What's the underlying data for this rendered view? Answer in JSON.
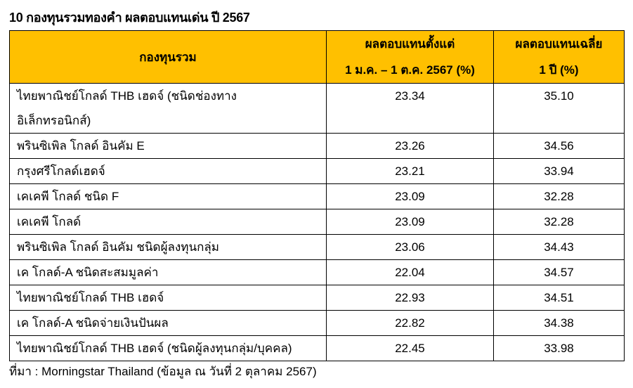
{
  "title": "10 กองทุนรวมทองคำ ผลตอบแทนเด่น ปี 2567",
  "headers": {
    "fund": "กองทุนรวม",
    "ytd_line1": "ผลตอบแทนตั้งแต่",
    "ytd_line2": "1 ม.ค. – 1 ต.ค. 2567 (%)",
    "avg_line1": "ผลตอบแทนเฉลี่ย",
    "avg_line2": "1 ปี (%)"
  },
  "rows": [
    {
      "fund": "ไทยพาณิชย์โกลด์ THB เฮดจ์ (ชนิดช่องทาง",
      "fund2": "อิเล็กทรอนิกส์)",
      "ytd": "23.34",
      "avg": "35.10"
    },
    {
      "fund": "พรินซิเพิล โกลด์ อินคัม E",
      "ytd": "23.26",
      "avg": "34.56"
    },
    {
      "fund": "กรุงศรีโกลด์เฮดจ์",
      "ytd": "23.21",
      "avg": "33.94"
    },
    {
      "fund": "เคเคพี โกลด์ ชนิด F",
      "ytd": "23.09",
      "avg": "32.28"
    },
    {
      "fund": "เคเคพี โกลด์",
      "ytd": "23.09",
      "avg": "32.28"
    },
    {
      "fund": "พรินซิเพิล โกลด์ อินคัม ชนิดผู้ลงทุนกลุ่ม",
      "ytd": "23.06",
      "avg": "34.43"
    },
    {
      "fund": "เค โกลด์-A ชนิดสะสมมูลค่า",
      "ytd": "22.04",
      "avg": "34.57"
    },
    {
      "fund": "ไทยพาณิชย์โกลด์ THB เฮดจ์",
      "ytd": "22.93",
      "avg": "34.51"
    },
    {
      "fund": "เค โกลด์-A ชนิดจ่ายเงินปันผล",
      "ytd": "22.82",
      "avg": "34.38"
    },
    {
      "fund": "ไทยพาณิชย์โกลด์ THB เฮดจ์ (ชนิดผู้ลงทุนกลุ่ม/บุคคล)",
      "ytd": "22.45",
      "avg": "33.98"
    }
  ],
  "source": "ที่มา : Morningstar Thailand (ข้อมูล ณ วันที่ 2 ตุลาคม 2567)",
  "colors": {
    "header_bg": "#FFC000"
  }
}
